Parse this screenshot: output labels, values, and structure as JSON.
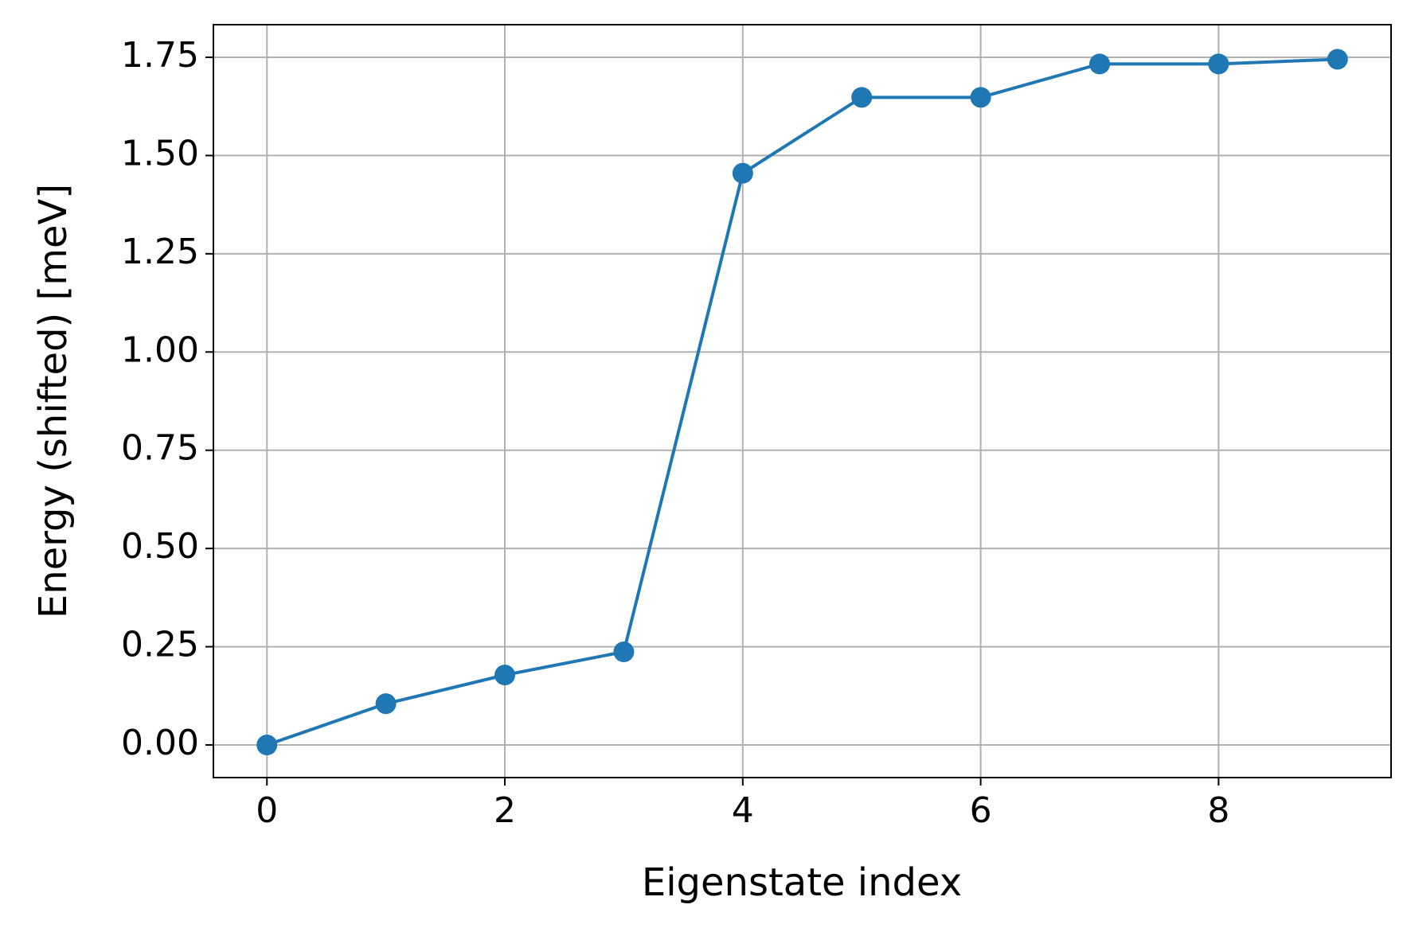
{
  "chart_data": {
    "type": "line",
    "x_label": "Eigenstate index",
    "y_label": "Energy (shifted) [meV]",
    "x": [
      0,
      1,
      2,
      3,
      4,
      5,
      6,
      7,
      8,
      9
    ],
    "series": [
      {
        "color": "#1f77b4",
        "values": [
          0,
          0.105,
          0.178,
          0.237,
          1.455,
          1.648,
          1.648,
          1.733,
          1.733,
          1.745
        ]
      }
    ],
    "xlim": [
      -0.45,
      9.45
    ],
    "ylim": [
      -0.083,
      1.833
    ],
    "xticks": [
      0,
      2,
      4,
      6,
      8
    ],
    "yticks": [
      {
        "value": 0,
        "label": "0.00"
      },
      {
        "value": 0.25,
        "label": "0.25"
      },
      {
        "value": 0.5,
        "label": "0.50"
      },
      {
        "value": 0.75,
        "label": "0.75"
      },
      {
        "value": 1,
        "label": "1.00"
      },
      {
        "value": 1.25,
        "label": "1.25"
      },
      {
        "value": 1.5,
        "label": "1.50"
      },
      {
        "value": 1.75,
        "label": "1.75"
      }
    ],
    "grid": true
  }
}
